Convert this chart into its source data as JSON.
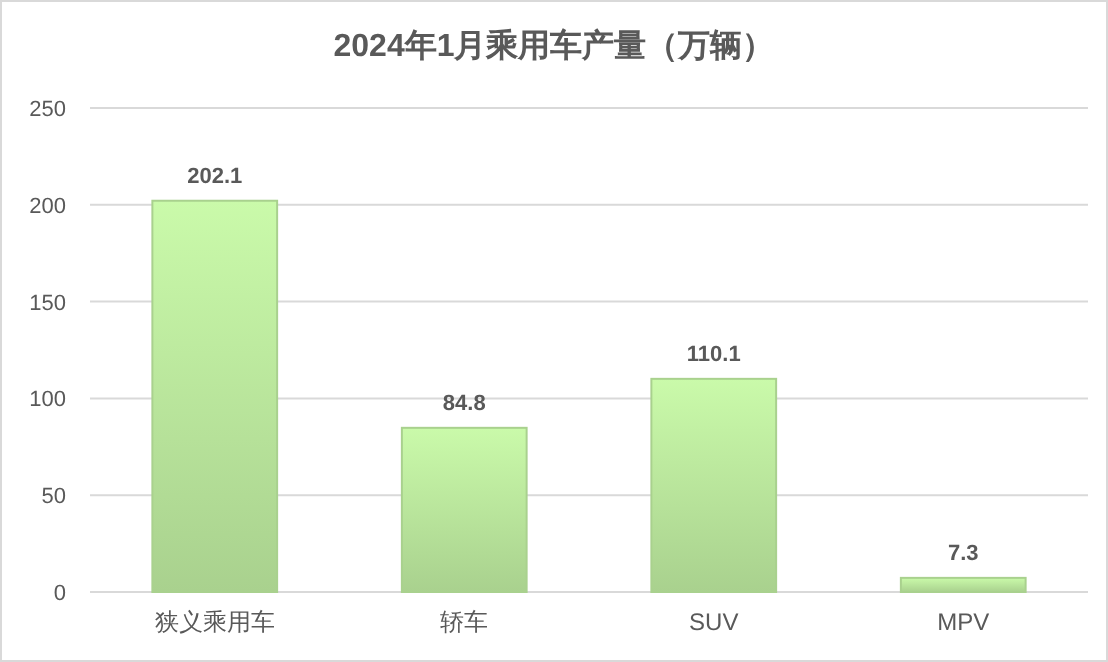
{
  "chart_data": {
    "type": "bar",
    "title": "2024年1月乘用车产量（万辆）",
    "categories": [
      "狭义乘用车",
      "轿车",
      "SUV",
      "MPV"
    ],
    "values": [
      202.1,
      84.8,
      110.1,
      7.3
    ],
    "color": "#a9d18e",
    "ylim": [
      0,
      250
    ],
    "yticks": [
      0,
      50,
      100,
      150,
      200,
      250
    ],
    "grid": "y",
    "data_labels": true
  }
}
